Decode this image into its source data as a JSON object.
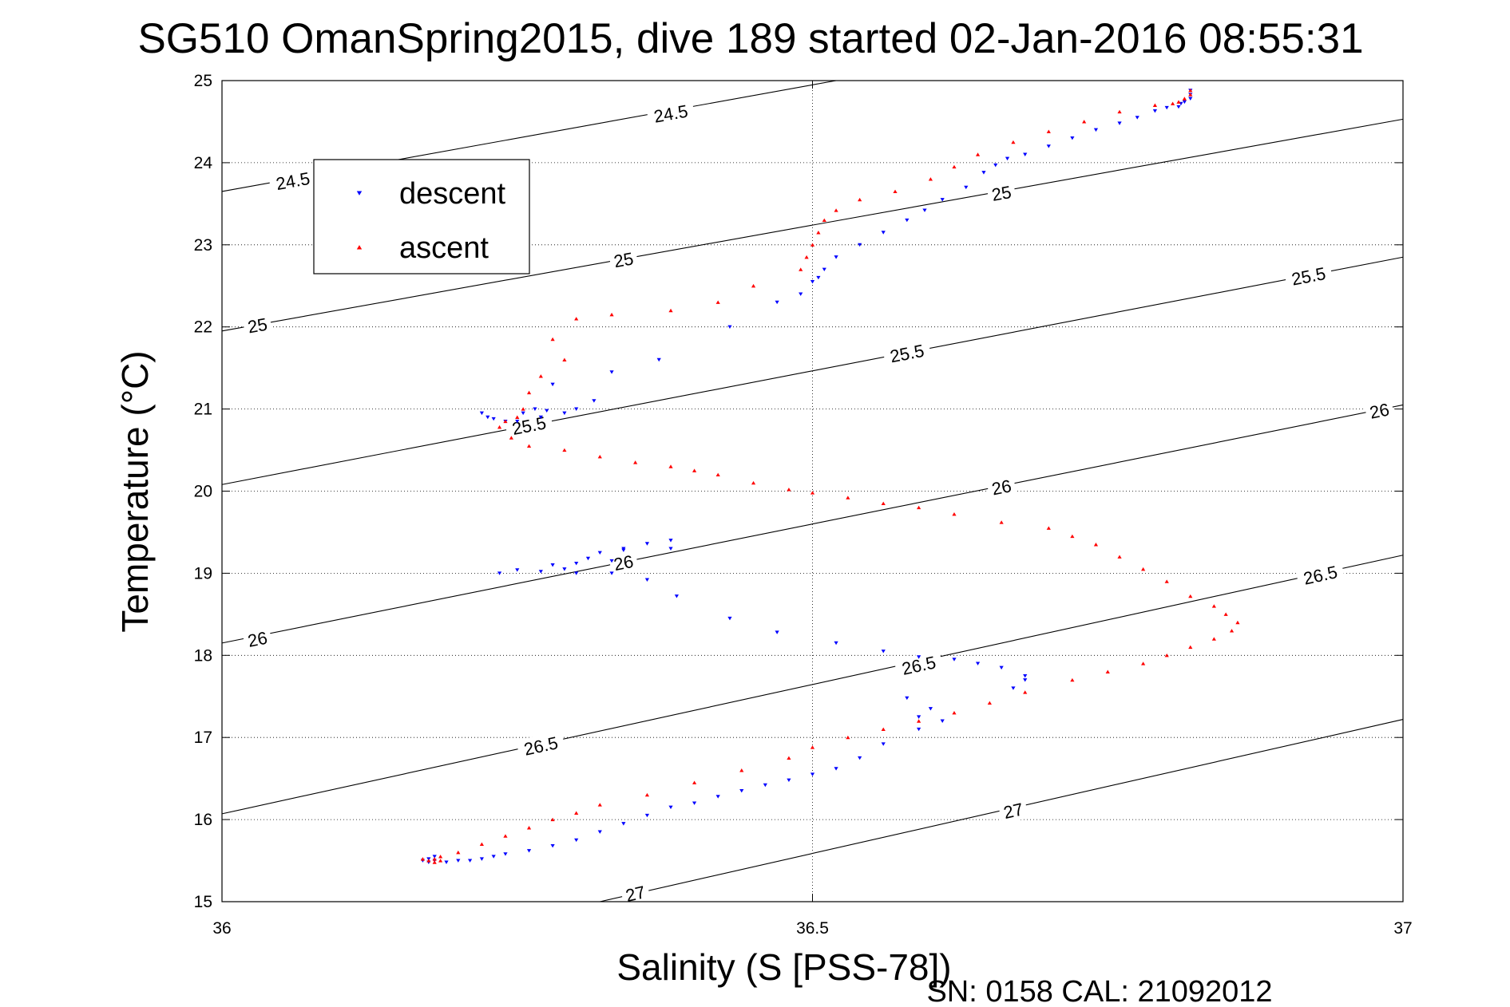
{
  "chart_data": {
    "type": "scatter",
    "title": "SG510 OmanSpring2015, dive 189 started 02-Jan-2016 08:55:31",
    "xlabel": "Salinity (S [PSS-78])",
    "ylabel": "Temperature (°C)",
    "footer": "SN: 0158  CAL: 21092012",
    "xlim": [
      36,
      37
    ],
    "ylim": [
      15,
      25
    ],
    "xticks": [
      "36",
      "36.5",
      "37"
    ],
    "yticks": [
      "15",
      "16",
      "17",
      "18",
      "19",
      "20",
      "21",
      "22",
      "23",
      "24",
      "25"
    ],
    "grid": "dotted",
    "legend": {
      "position": "top-left",
      "entries": [
        {
          "label": "descent",
          "marker": "triangle-down",
          "color": "#0000ff"
        },
        {
          "label": "ascent",
          "marker": "triangle-up",
          "color": "#ff0000"
        }
      ]
    },
    "contours": [
      {
        "label": "24.5",
        "x": [
          36,
          36.52
        ],
        "y": [
          23.65,
          25
        ],
        "label_points": [
          [
            36.06,
            23.78
          ],
          [
            36.38,
            24.6
          ]
        ]
      },
      {
        "label": "25",
        "x": [
          36,
          37
        ],
        "y": [
          21.95,
          24.53
        ],
        "label_points": [
          [
            36.03,
            22.02
          ],
          [
            36.34,
            22.82
          ],
          [
            36.66,
            23.63
          ]
        ]
      },
      {
        "label": "25.5",
        "x": [
          36,
          37
        ],
        "y": [
          20.08,
          22.85
        ],
        "label_points": [
          [
            36.26,
            20.8
          ],
          [
            36.58,
            21.68
          ],
          [
            36.92,
            22.62
          ]
        ]
      },
      {
        "label": "26",
        "x": [
          36,
          37
        ],
        "y": [
          18.15,
          21.05
        ],
        "label_points": [
          [
            36.03,
            18.2
          ],
          [
            36.34,
            19.13
          ],
          [
            36.66,
            20.05
          ],
          [
            36.98,
            20.98
          ]
        ]
      },
      {
        "label": "26.5",
        "x": [
          36,
          37
        ],
        "y": [
          16.07,
          19.22
        ],
        "label_points": [
          [
            36.27,
            16.9
          ],
          [
            36.59,
            17.88
          ],
          [
            36.93,
            18.98
          ]
        ]
      },
      {
        "label": "27",
        "x": [
          36.32,
          37
        ],
        "y": [
          15,
          17.22
        ],
        "label_points": [
          [
            36.35,
            15.1
          ],
          [
            36.67,
            16.11
          ]
        ]
      }
    ],
    "series": [
      {
        "name": "descent",
        "marker": "triangle-down",
        "color": "#0000ff",
        "x": [
          36.82,
          36.82,
          36.82,
          36.815,
          36.812,
          36.81,
          36.8,
          36.79,
          36.775,
          36.76,
          36.74,
          36.72,
          36.7,
          36.68,
          36.665,
          36.655,
          36.645,
          36.63,
          36.61,
          36.595,
          36.58,
          36.56,
          36.54,
          36.52,
          36.51,
          36.505,
          36.5,
          36.49,
          36.47,
          36.43,
          36.37,
          36.33,
          36.28,
          36.315,
          36.3,
          36.29,
          36.275,
          36.27,
          36.24,
          36.225,
          36.22,
          36.23,
          36.265,
          36.255,
          36.25,
          36.38,
          36.36,
          36.38,
          36.34,
          36.32,
          36.34,
          36.31,
          36.33,
          36.3,
          36.28,
          36.29,
          36.25,
          36.235,
          36.27,
          36.3,
          36.33,
          36.36,
          36.385,
          36.43,
          36.47,
          36.52,
          36.56,
          36.59,
          36.62,
          36.64,
          36.66,
          36.68,
          36.68,
          36.67,
          36.58,
          36.6,
          36.59,
          36.61,
          36.59,
          36.56,
          36.54,
          36.52,
          36.5,
          36.48,
          36.46,
          36.44,
          36.42,
          36.4,
          36.38,
          36.36,
          36.34,
          36.32,
          36.3,
          36.28,
          36.26,
          36.24,
          36.23,
          36.22,
          36.21,
          36.2,
          36.19,
          36.18,
          36.175,
          36.17,
          36.175,
          36.18
        ],
        "y": [
          24.88,
          24.83,
          24.78,
          24.74,
          24.72,
          24.68,
          24.67,
          24.63,
          24.55,
          24.48,
          24.4,
          24.3,
          24.2,
          24.1,
          24.05,
          23.97,
          23.88,
          23.7,
          23.55,
          23.42,
          23.3,
          23.15,
          23.0,
          22.85,
          22.7,
          22.6,
          22.55,
          22.4,
          22.3,
          22.0,
          21.6,
          21.45,
          21.3,
          21.1,
          21.0,
          20.95,
          20.98,
          20.9,
          20.85,
          20.9,
          20.95,
          20.88,
          21.0,
          20.95,
          20.85,
          19.4,
          19.36,
          19.3,
          19.3,
          19.25,
          19.28,
          19.18,
          19.15,
          19.12,
          19.1,
          19.05,
          19.04,
          19.0,
          19.02,
          19.0,
          19.0,
          18.92,
          18.72,
          18.45,
          18.28,
          18.15,
          18.05,
          17.98,
          17.95,
          17.9,
          17.85,
          17.75,
          17.7,
          17.6,
          17.48,
          17.35,
          17.25,
          17.2,
          17.1,
          16.92,
          16.75,
          16.62,
          16.55,
          16.48,
          16.42,
          16.35,
          16.28,
          16.2,
          16.15,
          16.05,
          15.95,
          15.85,
          15.75,
          15.68,
          15.62,
          15.58,
          15.55,
          15.52,
          15.5,
          15.5,
          15.48,
          15.5,
          15.48,
          15.5,
          15.52,
          15.55
        ]
      },
      {
        "name": "ascent",
        "marker": "triangle-up",
        "color": "#ff0000",
        "x": [
          36.82,
          36.82,
          36.815,
          36.81,
          36.805,
          36.79,
          36.76,
          36.73,
          36.7,
          36.67,
          36.64,
          36.62,
          36.6,
          36.57,
          36.54,
          36.52,
          36.51,
          36.505,
          36.5,
          36.495,
          36.49,
          36.45,
          36.42,
          36.38,
          36.33,
          36.3,
          36.28,
          36.29,
          36.27,
          36.26,
          36.255,
          36.25,
          36.24,
          36.235,
          36.245,
          36.26,
          36.29,
          36.32,
          36.35,
          36.38,
          36.4,
          36.42,
          36.45,
          36.48,
          36.5,
          36.53,
          36.56,
          36.59,
          36.62,
          36.66,
          36.7,
          36.72,
          36.74,
          36.76,
          36.78,
          36.8,
          36.82,
          36.84,
          36.85,
          36.86,
          36.855,
          36.84,
          36.82,
          36.8,
          36.78,
          36.75,
          36.72,
          36.68,
          36.65,
          36.62,
          36.59,
          36.56,
          36.53,
          36.5,
          36.48,
          36.44,
          36.4,
          36.36,
          36.32,
          36.3,
          36.28,
          36.26,
          36.24,
          36.22,
          36.2,
          36.185,
          36.18,
          36.175,
          36.18,
          36.185,
          36.17
        ],
        "y": [
          24.88,
          24.83,
          24.78,
          24.74,
          24.72,
          24.7,
          24.62,
          24.5,
          24.38,
          24.25,
          24.1,
          23.95,
          23.8,
          23.65,
          23.55,
          23.42,
          23.3,
          23.15,
          23.0,
          22.85,
          22.7,
          22.5,
          22.3,
          22.2,
          22.15,
          22.1,
          21.85,
          21.6,
          21.4,
          21.2,
          21.0,
          20.9,
          20.85,
          20.78,
          20.65,
          20.55,
          20.5,
          20.42,
          20.35,
          20.3,
          20.25,
          20.2,
          20.1,
          20.02,
          19.98,
          19.92,
          19.85,
          19.8,
          19.72,
          19.62,
          19.55,
          19.45,
          19.35,
          19.2,
          19.05,
          18.9,
          18.72,
          18.6,
          18.5,
          18.4,
          18.3,
          18.2,
          18.1,
          18.0,
          17.9,
          17.8,
          17.7,
          17.55,
          17.42,
          17.3,
          17.2,
          17.1,
          17.0,
          16.88,
          16.75,
          16.6,
          16.45,
          16.3,
          16.18,
          16.08,
          16.0,
          15.9,
          15.8,
          15.7,
          15.6,
          15.55,
          15.52,
          15.5,
          15.48,
          15.5,
          15.52
        ]
      }
    ]
  }
}
